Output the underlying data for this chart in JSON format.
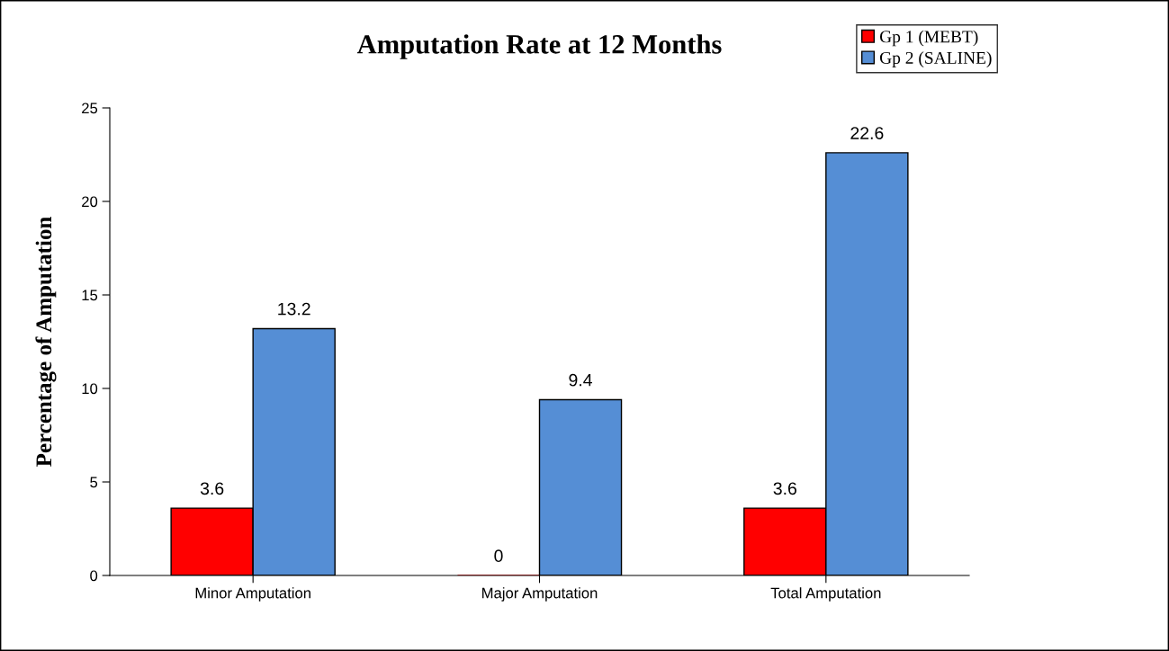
{
  "chart_data": {
    "type": "bar",
    "title": "Amputation Rate at 12 Months",
    "ylabel": "Percentage of Amputation",
    "categories": [
      "Minor Amputation",
      "Major Amputation",
      "Total Amputation"
    ],
    "series": [
      {
        "name": "Gp 1 (MEBT)",
        "color": "#ff0000",
        "values": [
          3.6,
          0,
          3.6
        ]
      },
      {
        "name": "Gp 2 (SALINE)",
        "color": "#558ed5",
        "values": [
          13.2,
          9.4,
          22.6
        ]
      }
    ],
    "ylim": [
      0,
      25
    ],
    "yticks": [
      0,
      5,
      10,
      15,
      20,
      25
    ],
    "grid": false,
    "legend": "top right",
    "data_labels": true
  }
}
